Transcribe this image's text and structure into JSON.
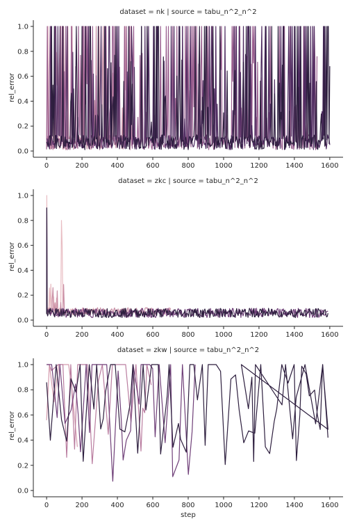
{
  "chart_data": [
    {
      "type": "line",
      "title": "dataset = nk | source = tabu_n^2_n^2",
      "xlabel": "",
      "ylabel": "rel_error",
      "xlim": [
        -75,
        1675
      ],
      "ylim": [
        -0.05,
        1.05
      ],
      "xticks": [
        "0",
        "200",
        "400",
        "600",
        "800",
        "1000",
        "1200",
        "1400",
        "1600"
      ],
      "yticks": [
        "0.0",
        "0.2",
        "0.4",
        "0.6",
        "0.8",
        "1.0"
      ],
      "grid": false,
      "legend": "none",
      "palette": [
        "#e8bcc2",
        "#d49aad",
        "#b97c9f",
        "#9a5f8f",
        "#6f3f78",
        "#4e2b60",
        "#2d1e3e"
      ],
      "series": [
        {
          "color": "#e8bcc2",
          "end": 120,
          "pattern": "noisy-low-spiky",
          "values_range": [
            0,
            1.0
          ]
        },
        {
          "color": "#c98fa5",
          "end": 500,
          "pattern": "noisy-low-spiky",
          "values_range": [
            0,
            1.0
          ]
        },
        {
          "color": "#9a5f8f",
          "end": 1530,
          "pattern": "noisy-low-spiky",
          "values_range": [
            0,
            1.0
          ]
        },
        {
          "color": "#4e2b60",
          "end": 1600,
          "pattern": "noisy-low-spiky",
          "values_range": [
            0,
            1.0
          ]
        },
        {
          "color": "#2d1e3e",
          "end": 1600,
          "pattern": "noisy-low-spiky",
          "values_range": [
            0,
            1.0
          ]
        }
      ]
    },
    {
      "type": "line",
      "title": "dataset = zkc | source = tabu_n^2_n^2",
      "xlabel": "",
      "ylabel": "rel_error",
      "xlim": [
        -75,
        1675
      ],
      "ylim": [
        -0.05,
        1.05
      ],
      "xticks": [
        "0",
        "200",
        "400",
        "600",
        "800",
        "1000",
        "1200",
        "1400",
        "1600"
      ],
      "yticks": [
        "0.0",
        "0.2",
        "0.4",
        "0.6",
        "0.8",
        "1.0"
      ],
      "grid": false,
      "legend": "none",
      "series": [
        {
          "color": "#e8bcc2",
          "end": 300,
          "pattern": "decay-then-flat",
          "values_range": [
            0.03,
            1.0
          ]
        },
        {
          "color": "#c98fa5",
          "end": 700,
          "pattern": "decay-then-flat",
          "values_range": [
            0.03,
            0.3
          ]
        },
        {
          "color": "#6f3f78",
          "end": 1590,
          "pattern": "flat-noisy",
          "values_range": [
            0.02,
            0.1
          ]
        },
        {
          "color": "#2d1e3e",
          "end": 1590,
          "pattern": "flat-noisy",
          "values_range": [
            0.02,
            0.1
          ]
        }
      ]
    },
    {
      "type": "line",
      "title": "dataset = zkw | source = tabu_n^2_n^2",
      "xlabel": "step",
      "ylabel": "rel_error",
      "xlim": [
        -75,
        1675
      ],
      "ylim": [
        -0.05,
        1.05
      ],
      "xticks": [
        "0",
        "200",
        "400",
        "600",
        "800",
        "1000",
        "1200",
        "1400",
        "1600"
      ],
      "yticks": [
        "0.0",
        "0.2",
        "0.4",
        "0.6",
        "0.8",
        "1.0"
      ],
      "grid": false,
      "legend": "none",
      "series": [
        {
          "color": "#d49aad",
          "end": 180,
          "pattern": "sparse-zigzag",
          "values_range": [
            0,
            1.0
          ]
        },
        {
          "color": "#b97c9f",
          "end": 600,
          "pattern": "sparse-zigzag",
          "values_range": [
            0.1,
            1.0
          ]
        },
        {
          "color": "#6f3f78",
          "end": 860,
          "pattern": "sparse-zigzag",
          "values_range": [
            0.05,
            1.0
          ]
        },
        {
          "color": "#2d1e3e",
          "end": 1600,
          "pattern": "sparse-zigzag",
          "values_range": [
            0.2,
            1.0
          ],
          "tail": [
            [
              1100,
              1.0
            ],
            [
              1140,
              0.65
            ],
            [
              1160,
              0.9
            ],
            [
              1170,
              0.23
            ],
            [
              1180,
              1.0
            ],
            [
              1330,
              0.68
            ],
            [
              1350,
              1.0
            ],
            [
              1390,
              0.41
            ],
            [
              1410,
              0.74
            ],
            [
              1460,
              1.0
            ],
            [
              1520,
              0.53
            ],
            [
              1560,
              1.0
            ],
            [
              1590,
              0.42
            ]
          ]
        }
      ]
    }
  ]
}
